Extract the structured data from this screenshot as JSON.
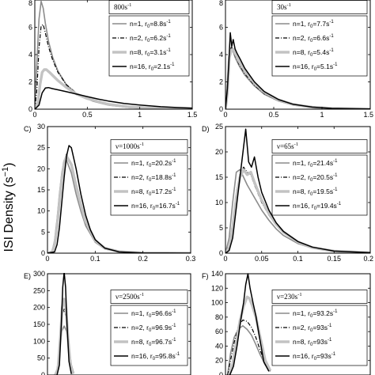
{
  "figure": {
    "ylabel_text": "ISI Density (s",
    "ylabel_unit_exp": "−1",
    "ylabel_close": ")"
  },
  "chart_data": [
    {
      "panel_label": "",
      "type": "line",
      "nu_label": "800s",
      "nu_exp": "-1",
      "xlim": [
        0,
        1.5
      ],
      "ylim": [
        0,
        8
      ],
      "xticks": [
        0,
        0.5,
        1,
        1.5
      ],
      "xtick_labels": [
        "0",
        "0.5",
        "1",
        "1.5"
      ],
      "yticks": [
        0,
        2,
        4,
        6,
        8
      ],
      "ytick_labels": [
        "0",
        "2",
        "4",
        "6",
        "8"
      ],
      "series": [
        {
          "name": "n=1, r",
          "r0_value": "=8.8s",
          "style": "thin-gray",
          "x": [
            0,
            0.02,
            0.04,
            0.06,
            0.08,
            0.1,
            0.13,
            0.17,
            0.22,
            0.3,
            0.4,
            0.55,
            0.7,
            0.9,
            1.1,
            1.3,
            1.5
          ],
          "y": [
            0,
            3.5,
            6.6,
            7.9,
            7.4,
            6.3,
            5.0,
            3.8,
            2.8,
            1.8,
            1.1,
            0.6,
            0.3,
            0.12,
            0.05,
            0.02,
            0.01
          ]
        },
        {
          "name": "n=2, r",
          "r0_value": "=6.2s",
          "style": "dashdot",
          "x": [
            0,
            0.02,
            0.04,
            0.06,
            0.08,
            0.1,
            0.13,
            0.17,
            0.22,
            0.3,
            0.4,
            0.55,
            0.7,
            0.9,
            1.1,
            1.3,
            1.5
          ],
          "y": [
            0,
            1.5,
            4.5,
            6.1,
            6.2,
            5.6,
            4.6,
            3.6,
            2.7,
            1.8,
            1.15,
            0.62,
            0.33,
            0.14,
            0.06,
            0.03,
            0.01
          ]
        },
        {
          "name": "n=8, r",
          "r0_value": "=3.1s",
          "style": "thick-gray",
          "x": [
            0,
            0.03,
            0.05,
            0.07,
            0.09,
            0.11,
            0.14,
            0.18,
            0.22,
            0.3,
            0.4,
            0.5,
            0.7,
            0.9,
            1.1,
            1.3,
            1.5
          ],
          "y": [
            0,
            0.5,
            1.8,
            2.7,
            2.9,
            2.9,
            2.7,
            2.4,
            2.1,
            1.6,
            1.1,
            0.78,
            0.36,
            0.17,
            0.08,
            0.04,
            0.02
          ]
        },
        {
          "name": "n=16, r",
          "r0_value": "=2.1s",
          "style": "black",
          "x": [
            0,
            0.04,
            0.07,
            0.1,
            0.13,
            0.17,
            0.22,
            0.3,
            0.4,
            0.5,
            0.6,
            0.7,
            0.85,
            1.0,
            1.2,
            1.35,
            1.5
          ],
          "y": [
            0,
            0.3,
            1.2,
            1.55,
            1.58,
            1.5,
            1.42,
            1.28,
            1.1,
            0.92,
            0.75,
            0.6,
            0.42,
            0.3,
            0.18,
            0.12,
            0.08
          ]
        }
      ]
    },
    {
      "panel_label": "",
      "type": "line",
      "nu_label": "30s",
      "nu_exp": "-1",
      "xlim": [
        0,
        1.5
      ],
      "ylim": [
        0,
        8
      ],
      "xticks": [
        0,
        0.5,
        1,
        1.5
      ],
      "xtick_labels": [
        "0",
        "0.5",
        "1",
        "1.5"
      ],
      "yticks": [
        0,
        2,
        4,
        6,
        8
      ],
      "ytick_labels": [
        "0",
        "2",
        "4",
        "6",
        "8"
      ],
      "series": [
        {
          "name": "n=1, r",
          "r0_value": "=7.7s",
          "style": "thin-gray",
          "x": [
            0,
            0.02,
            0.04,
            0.06,
            0.08,
            0.1,
            0.14,
            0.2,
            0.3,
            0.4,
            0.55,
            0.7,
            0.9,
            1.1,
            1.5
          ],
          "y": [
            0,
            2.0,
            4.0,
            4.5,
            4.2,
            3.8,
            3.2,
            2.5,
            1.7,
            1.1,
            0.6,
            0.3,
            0.12,
            0.05,
            0.01
          ]
        },
        {
          "name": "n=2, r",
          "r0_value": "=6.6s",
          "style": "dashdot",
          "x": [
            0,
            0.02,
            0.04,
            0.06,
            0.08,
            0.1,
            0.14,
            0.2,
            0.3,
            0.4,
            0.55,
            0.7,
            0.9,
            1.1,
            1.5
          ],
          "y": [
            0,
            1.6,
            4.0,
            4.6,
            4.3,
            3.9,
            3.3,
            2.6,
            1.75,
            1.15,
            0.62,
            0.32,
            0.13,
            0.05,
            0.01
          ]
        },
        {
          "name": "n=8, r",
          "r0_value": "=5.4s",
          "style": "thick-gray",
          "x": [
            0,
            0.02,
            0.04,
            0.06,
            0.08,
            0.1,
            0.14,
            0.2,
            0.3,
            0.4,
            0.55,
            0.7,
            0.9,
            1.1,
            1.5
          ],
          "y": [
            0,
            1.2,
            3.8,
            4.3,
            4.4,
            4.1,
            3.5,
            2.8,
            1.9,
            1.25,
            0.68,
            0.35,
            0.14,
            0.06,
            0.01
          ]
        },
        {
          "name": "n=16, r",
          "r0_value": "=5.1s",
          "style": "black",
          "x": [
            0,
            0.02,
            0.035,
            0.05,
            0.065,
            0.08,
            0.1,
            0.12,
            0.15,
            0.2,
            0.3,
            0.4,
            0.55,
            0.7,
            0.9,
            1.1,
            1.5
          ],
          "y": [
            0,
            1.5,
            3.5,
            5.6,
            4.6,
            5.1,
            4.4,
            4.1,
            3.7,
            3.0,
            2.0,
            1.3,
            0.7,
            0.36,
            0.15,
            0.06,
            0.01
          ]
        }
      ]
    },
    {
      "panel_label": "C)",
      "type": "line",
      "nu_label": "ν=1000s",
      "nu_exp": "-1",
      "xlim": [
        0,
        0.3
      ],
      "ylim": [
        0,
        30
      ],
      "xticks": [
        0,
        0.1,
        0.2,
        0.3
      ],
      "xtick_labels": [
        "0",
        "0.1",
        "0.2",
        "0.3"
      ],
      "yticks": [
        0,
        5,
        10,
        15,
        20,
        25,
        30
      ],
      "ytick_labels": [
        "0",
        "5",
        "10",
        "15",
        "20",
        "25",
        "30"
      ],
      "series": [
        {
          "name": "n=1, r",
          "r0_value": "=20.2s",
          "style": "thin-gray",
          "x": [
            0,
            0.01,
            0.015,
            0.02,
            0.025,
            0.03,
            0.035,
            0.04,
            0.05,
            0.06,
            0.07,
            0.08,
            0.1,
            0.12,
            0.15,
            0.2,
            0.3
          ],
          "y": [
            0,
            0.5,
            3,
            8,
            14,
            19,
            22,
            22,
            19,
            14,
            10,
            6.5,
            2.6,
            1.0,
            0.3,
            0.05,
            0
          ]
        },
        {
          "name": "n=2, r",
          "r0_value": "=18.8s",
          "style": "dashdot",
          "x": [
            0,
            0.01,
            0.015,
            0.02,
            0.025,
            0.03,
            0.035,
            0.04,
            0.05,
            0.06,
            0.07,
            0.08,
            0.1,
            0.12,
            0.15,
            0.2,
            0.3
          ],
          "y": [
            0,
            0.2,
            1.5,
            5,
            11,
            17,
            21.5,
            23.5,
            21,
            15.5,
            11,
            7,
            2.8,
            1.1,
            0.3,
            0.05,
            0
          ]
        },
        {
          "name": "n=8, r",
          "r0_value": "=17.2s",
          "style": "thick-gray",
          "x": [
            0,
            0.01,
            0.015,
            0.02,
            0.025,
            0.03,
            0.035,
            0.04,
            0.05,
            0.06,
            0.07,
            0.08,
            0.1,
            0.12,
            0.15,
            0.2,
            0.3
          ],
          "y": [
            0,
            0.3,
            2,
            6,
            12,
            17.5,
            21.5,
            23,
            21,
            16,
            11.5,
            7.5,
            3.0,
            1.2,
            0.35,
            0.05,
            0
          ]
        },
        {
          "name": "n=16, r",
          "r0_value": "=16.7s",
          "style": "black",
          "x": [
            0,
            0.015,
            0.02,
            0.025,
            0.03,
            0.035,
            0.04,
            0.045,
            0.05,
            0.06,
            0.07,
            0.08,
            0.09,
            0.1,
            0.12,
            0.15,
            0.2,
            0.3
          ],
          "y": [
            0,
            0.3,
            2,
            6,
            12,
            18,
            23,
            25.5,
            25,
            20,
            14,
            9,
            5.5,
            3.2,
            1.2,
            0.3,
            0.05,
            0
          ]
        }
      ]
    },
    {
      "panel_label": "D)",
      "type": "line",
      "nu_label": "ν=65s",
      "nu_exp": "-1",
      "xlim": [
        0,
        0.2
      ],
      "ylim": [
        0,
        25
      ],
      "xticks": [
        0,
        0.05,
        0.1,
        0.15,
        0.2
      ],
      "xtick_labels": [
        "0",
        "0.05",
        "0.1",
        "0.15",
        "0.2"
      ],
      "yticks": [
        0,
        5,
        10,
        15,
        20,
        25
      ],
      "ytick_labels": [
        "0",
        "5",
        "10",
        "15",
        "20",
        "25"
      ],
      "series": [
        {
          "name": "n=1, r",
          "r0_value": "=21.4s",
          "style": "thin-gray",
          "x": [
            0,
            0.005,
            0.01,
            0.015,
            0.02,
            0.025,
            0.03,
            0.04,
            0.05,
            0.06,
            0.07,
            0.08,
            0.1,
            0.12,
            0.15,
            0.2
          ],
          "y": [
            0,
            3,
            10,
            16,
            16.5,
            15,
            13.5,
            11,
            8.5,
            6.5,
            4.8,
            3.5,
            1.9,
            1.0,
            0.4,
            0.1
          ]
        },
        {
          "name": "n=2, r",
          "r0_value": "=20.5s",
          "style": "dashdot",
          "x": [
            0,
            0.005,
            0.01,
            0.015,
            0.02,
            0.025,
            0.03,
            0.035,
            0.04,
            0.05,
            0.06,
            0.07,
            0.08,
            0.1,
            0.12,
            0.15,
            0.2
          ],
          "y": [
            0,
            1.5,
            6,
            12,
            15.5,
            17,
            16,
            15.5,
            13.5,
            10,
            7.5,
            5.5,
            4,
            2.1,
            1.1,
            0.4,
            0.1
          ]
        },
        {
          "name": "n=8, r",
          "r0_value": "=19.5s",
          "style": "thick-gray",
          "x": [
            0,
            0.005,
            0.01,
            0.015,
            0.02,
            0.025,
            0.03,
            0.035,
            0.04,
            0.05,
            0.06,
            0.07,
            0.08,
            0.1,
            0.12,
            0.15,
            0.2
          ],
          "y": [
            0,
            1,
            5,
            11,
            15,
            16.5,
            15.5,
            16,
            14,
            10.5,
            7.8,
            5.7,
            4.2,
            2.2,
            1.1,
            0.4,
            0.1
          ]
        },
        {
          "name": "n=16, r",
          "r0_value": "=19.4s",
          "style": "black",
          "x": [
            0,
            0.005,
            0.01,
            0.015,
            0.02,
            0.025,
            0.028,
            0.032,
            0.036,
            0.04,
            0.045,
            0.05,
            0.06,
            0.07,
            0.08,
            0.1,
            0.12,
            0.15,
            0.2
          ],
          "y": [
            0,
            0.5,
            3,
            9,
            15,
            21,
            24.5,
            18,
            17,
            19,
            15,
            12,
            8.5,
            6,
            4.3,
            2.3,
            1.2,
            0.4,
            0.1
          ]
        }
      ]
    },
    {
      "panel_label": "E)",
      "type": "line",
      "nu_label": "ν=2500s",
      "nu_exp": "-1",
      "xlim": [
        0,
        0.3
      ],
      "ylim": [
        0,
        300
      ],
      "xticks": [],
      "xtick_labels": [],
      "yticks": [
        0,
        50,
        100,
        150,
        200,
        250,
        300
      ],
      "ytick_labels": [
        "0",
        "50",
        "100",
        "150",
        "200",
        "250",
        "300"
      ],
      "series": [
        {
          "name": "n=1, r",
          "r0_value": "=96.6s",
          "style": "thin-gray",
          "x": [
            0.015,
            0.02,
            0.025,
            0.03,
            0.035,
            0.04,
            0.045,
            0.05,
            0.055
          ],
          "y": [
            0,
            15,
            70,
            130,
            145,
            130,
            80,
            30,
            5
          ]
        },
        {
          "name": "n=2, r",
          "r0_value": "=96.9s",
          "style": "dashdot",
          "x": [
            0.017,
            0.022,
            0.027,
            0.031,
            0.035,
            0.039,
            0.043,
            0.048,
            0.053
          ],
          "y": [
            0,
            20,
            100,
            180,
            195,
            170,
            100,
            30,
            3
          ]
        },
        {
          "name": "n=8, r",
          "r0_value": "=96.7s",
          "style": "thick-gray",
          "x": [
            0.017,
            0.022,
            0.027,
            0.031,
            0.035,
            0.039,
            0.043,
            0.048,
            0.053
          ],
          "y": [
            0,
            20,
            110,
            200,
            225,
            195,
            110,
            30,
            3
          ]
        },
        {
          "name": "n=16, r",
          "r0_value": "=95.8s",
          "style": "black",
          "x": [
            0.02,
            0.025,
            0.029,
            0.032,
            0.035,
            0.038,
            0.041,
            0.045,
            0.05
          ],
          "y": [
            0,
            30,
            150,
            260,
            305,
            260,
            150,
            40,
            3
          ]
        }
      ]
    },
    {
      "panel_label": "F)",
      "type": "line",
      "nu_label": "ν=230s",
      "nu_exp": "-1",
      "xlim": [
        0,
        0.2
      ],
      "ylim": [
        0,
        140
      ],
      "xticks": [],
      "xtick_labels": [],
      "yticks": [
        0,
        20,
        40,
        60,
        80,
        100,
        120,
        140
      ],
      "ytick_labels": [
        "0",
        "20",
        "40",
        "60",
        "80",
        "100",
        "120",
        "140"
      ],
      "series": [
        {
          "name": "n=1, r",
          "r0_value": "=93.2s",
          "style": "thin-gray",
          "x": [
            0.003,
            0.007,
            0.012,
            0.018,
            0.024,
            0.03,
            0.036,
            0.042,
            0.048,
            0.055,
            0.062
          ],
          "y": [
            0,
            30,
            52,
            64,
            68,
            63,
            55,
            42,
            28,
            14,
            5
          ]
        },
        {
          "name": "n=2, r",
          "r0_value": "=93s",
          "style": "dashdot",
          "x": [
            0.003,
            0.007,
            0.012,
            0.018,
            0.024,
            0.03,
            0.036,
            0.042,
            0.048,
            0.055,
            0.062
          ],
          "y": [
            0,
            20,
            45,
            68,
            76,
            74,
            66,
            52,
            34,
            16,
            5
          ]
        },
        {
          "name": "n=8, r",
          "r0_value": "=93s",
          "style": "thick-gray",
          "x": [
            0.005,
            0.01,
            0.015,
            0.02,
            0.025,
            0.03,
            0.033,
            0.037,
            0.042,
            0.048,
            0.055,
            0.062
          ],
          "y": [
            0,
            15,
            45,
            75,
            95,
            108,
            106,
            96,
            80,
            52,
            20,
            6
          ]
        },
        {
          "name": "n=16, r",
          "r0_value": "=93s",
          "style": "black",
          "x": [
            0.006,
            0.011,
            0.016,
            0.021,
            0.025,
            0.028,
            0.031,
            0.034,
            0.038,
            0.042,
            0.047,
            0.053,
            0.06
          ],
          "y": [
            0,
            12,
            40,
            75,
            100,
            125,
            140,
            120,
            100,
            82,
            52,
            18,
            5
          ]
        }
      ]
    }
  ]
}
